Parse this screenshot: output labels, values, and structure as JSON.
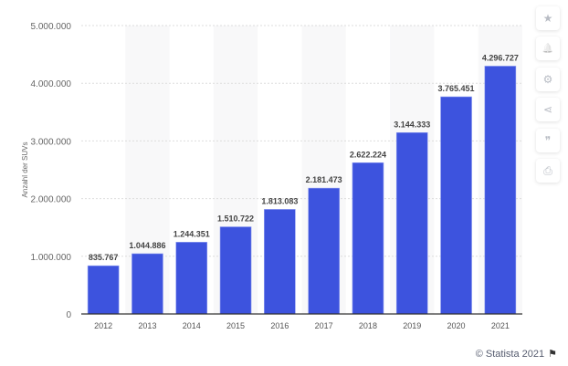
{
  "chart_data": {
    "type": "bar",
    "categories": [
      "2012",
      "2013",
      "2014",
      "2015",
      "2016",
      "2017",
      "2018",
      "2019",
      "2020",
      "2021"
    ],
    "values": [
      835767,
      1044886,
      1244351,
      1510722,
      1813083,
      2181473,
      2622224,
      3144333,
      3765451,
      4296727
    ],
    "value_labels": [
      "835.767",
      "1.044.886",
      "1.244.351",
      "1.510.722",
      "1.813.083",
      "2.181.473",
      "2.622.224",
      "3.144.333",
      "3.765.451",
      "4.296.727"
    ],
    "ylabel": "Anzahl der SUVs",
    "xlabel": "",
    "ylim": [
      0,
      5000000
    ],
    "yticks": [
      0,
      1000000,
      2000000,
      3000000,
      4000000,
      5000000
    ],
    "ytick_labels": [
      "0",
      "1.000.000",
      "2.000.000",
      "3.000.000",
      "4.000.000",
      "5.000.000"
    ],
    "grid": true,
    "bar_color": "#3d53de"
  },
  "sidebar": {
    "buttons": [
      {
        "name": "favorite-button",
        "icon": "star-icon",
        "glyph": "★"
      },
      {
        "name": "notification-button",
        "icon": "bell-icon",
        "glyph": "🔔"
      },
      {
        "name": "settings-button",
        "icon": "gear-icon",
        "glyph": "⚙"
      },
      {
        "name": "share-button",
        "icon": "share-icon",
        "glyph": "⋖"
      },
      {
        "name": "cite-button",
        "icon": "quote-icon",
        "glyph": "❞"
      },
      {
        "name": "print-button",
        "icon": "printer-icon",
        "glyph": "⎙"
      }
    ]
  },
  "footer": {
    "copyright": "© Statista 2021",
    "flag_glyph": "⚑"
  }
}
